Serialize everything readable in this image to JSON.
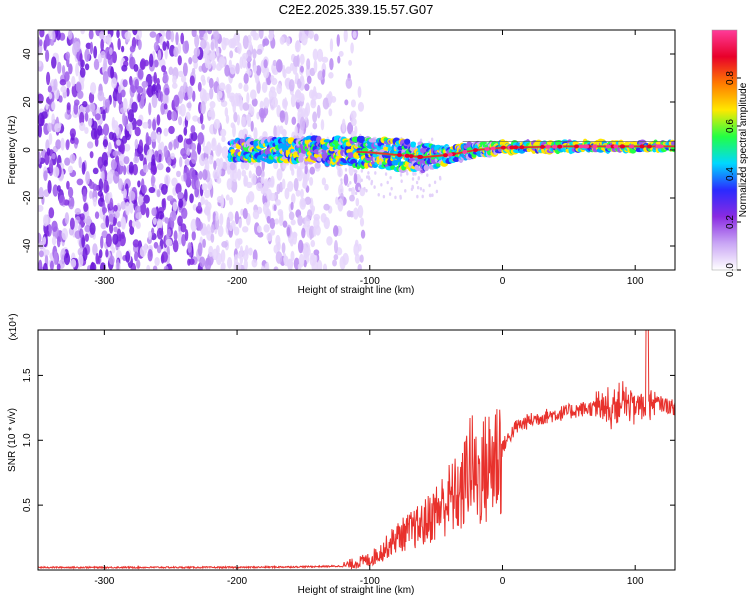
{
  "title": "C2E2.2025.339.15.57.G07",
  "colors": {
    "snr_line": "#e8312c",
    "scatter_low": "#8a2be2",
    "signal_band": "#e8312c"
  },
  "chart_data": [
    {
      "type": "heatmap",
      "title": "C2E2.2025.339.15.57.G07",
      "xlabel": "Height of straight line (km)",
      "ylabel": "Frequency (Hz)",
      "xlim": [
        -350,
        130
      ],
      "ylim": [
        -50,
        50
      ],
      "xticks": [
        -300,
        -200,
        -100,
        0,
        100
      ],
      "yticks": [
        -40,
        -20,
        0,
        20,
        40
      ],
      "colorbar": {
        "label": "Normalized spectral amplitude",
        "range": [
          0,
          1
        ],
        "ticks": [
          "0.0",
          "0.2",
          "0.4",
          "0.6",
          "0.8"
        ],
        "colormap": [
          "#ffffff",
          "#c9a6f5",
          "#8a2be2",
          "#2a2aff",
          "#00d8ff",
          "#22ff44",
          "#ffe800",
          "#ff7a00",
          "#e8002a",
          "#ff3b9a"
        ]
      },
      "noise_region_x": [
        -350,
        -125
      ],
      "signal_band": {
        "start_x": -205,
        "center_freq_hz": [
          [
            -205,
            0
          ],
          [
            -150,
            0
          ],
          [
            -100,
            -1
          ],
          [
            -60,
            -3
          ],
          [
            -40,
            -2
          ],
          [
            -20,
            0
          ],
          [
            0,
            1
          ],
          [
            50,
            1.5
          ],
          [
            130,
            1.5
          ]
        ],
        "half_width_hz": [
          [
            -205,
            4
          ],
          [
            -100,
            6
          ],
          [
            -60,
            6
          ],
          [
            -40,
            3
          ],
          [
            0,
            2
          ],
          [
            130,
            1.5
          ]
        ]
      }
    },
    {
      "type": "line",
      "xlabel": "Height of straight line (km)",
      "ylabel": "SNR (10 * v/v)",
      "y_multiplier": "(x10⁴)",
      "xlim": [
        -350,
        130
      ],
      "ylim": [
        0,
        1.85
      ],
      "xticks": [
        -300,
        -200,
        -100,
        0,
        100
      ],
      "yticks": [
        0.5,
        1.0,
        1.5
      ],
      "yticklabels": [
        "0.5",
        "1.0",
        "1.5"
      ],
      "series": [
        {
          "x": [
            -350,
            -300,
            -250,
            -200,
            -150,
            -120,
            -100,
            -90,
            -80,
            -70,
            -60,
            -50,
            -40,
            -30,
            -25,
            -20,
            -10,
            0,
            10,
            20,
            30,
            40,
            50,
            60,
            70,
            80,
            90,
            100,
            110,
            120,
            130
          ],
          "values": [
            0.02,
            0.02,
            0.02,
            0.02,
            0.025,
            0.03,
            0.08,
            0.15,
            0.25,
            0.3,
            0.35,
            0.45,
            0.55,
            0.6,
            0.85,
            0.7,
            0.8,
            0.95,
            1.1,
            1.15,
            1.18,
            1.2,
            1.22,
            1.24,
            1.25,
            1.27,
            1.3,
            1.25,
            1.3,
            1.28,
            1.25
          ]
        }
      ]
    }
  ]
}
